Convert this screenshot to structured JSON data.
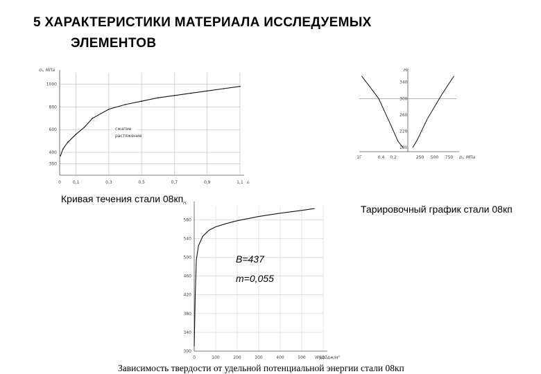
{
  "page": {
    "title_line1": "5 ХАРАКТЕРИСТИКИ МАТЕРИАЛА  ИССЛЕДУЕМЫХ",
    "title_line2": "ЭЛЕМЕНТОВ"
  },
  "captions": {
    "flow_curve": "Кривая течения стали 08кп",
    "calibration": "Тарировочный график стали 08кп",
    "hardness": "Зависимость твердости от удельной потенциальной энергии стали 08кп"
  },
  "annotations": {
    "B": "B=437",
    "m": "m=0,055"
  },
  "chart_data": [
    {
      "id": "flow_curve",
      "type": "line",
      "ylabel": "σₛ, МПа",
      "xlabel": "εᵢ",
      "x_ticks": [
        "0",
        "0,1",
        "0,3",
        "0,5",
        "0,7",
        "0,9",
        "1,1"
      ],
      "y_ticks": [
        "300",
        "400",
        "600",
        "800",
        "1000"
      ],
      "xlim": [
        0,
        1.1
      ],
      "ylim": [
        200,
        1100
      ],
      "grid": true,
      "legend": [
        "сжатие",
        "растяжение"
      ],
      "series": [
        {
          "x": [
            0.005,
            0.02,
            0.05,
            0.1,
            0.15,
            0.2,
            0.3,
            0.4,
            0.5,
            0.6,
            0.7,
            0.8,
            0.9,
            1.0,
            1.1
          ],
          "y": [
            370,
            430,
            490,
            560,
            620,
            700,
            780,
            820,
            850,
            880,
            900,
            920,
            940,
            960,
            980
          ]
        }
      ]
    },
    {
      "id": "calibration",
      "type": "line",
      "ylabel": "Hᵢ",
      "xlabel": "σᵧ, МПа",
      "y_ticks": [
        "340",
        "300",
        "260",
        "220",
        "180"
      ],
      "x_ticks": [
        "1Г",
        "0,4",
        "0,2",
        "",
        "250",
        "500",
        "750"
      ],
      "grid": true,
      "series": [
        {
          "name": "left",
          "x": [
            -0.95,
            -0.6,
            -0.35,
            -0.2,
            -0.1
          ],
          "y": [
            355,
            300,
            235,
            195,
            180
          ]
        },
        {
          "name": "right",
          "x": [
            0.1,
            0.2,
            0.4,
            0.7,
            0.95
          ],
          "y": [
            180,
            200,
            250,
            310,
            355
          ]
        }
      ]
    },
    {
      "id": "hardness",
      "type": "line",
      "ylabel": "Hᵢ",
      "xlabel": "Wуд, дж/м³",
      "x_ticks": [
        "0",
        "100",
        "200",
        "300",
        "400",
        "500",
        "600"
      ],
      "y_ticks": [
        "300",
        "340",
        "380",
        "420",
        "460",
        "500",
        "540",
        "580"
      ],
      "xlim": [
        0,
        600
      ],
      "ylim": [
        300,
        610
      ],
      "grid": true,
      "series": [
        {
          "x": [
            0,
            5,
            10,
            20,
            40,
            70,
            100,
            150,
            200,
            300,
            400,
            500,
            560
          ],
          "y": [
            310,
            420,
            495,
            525,
            545,
            558,
            565,
            572,
            578,
            587,
            594,
            600,
            604
          ]
        }
      ]
    }
  ]
}
